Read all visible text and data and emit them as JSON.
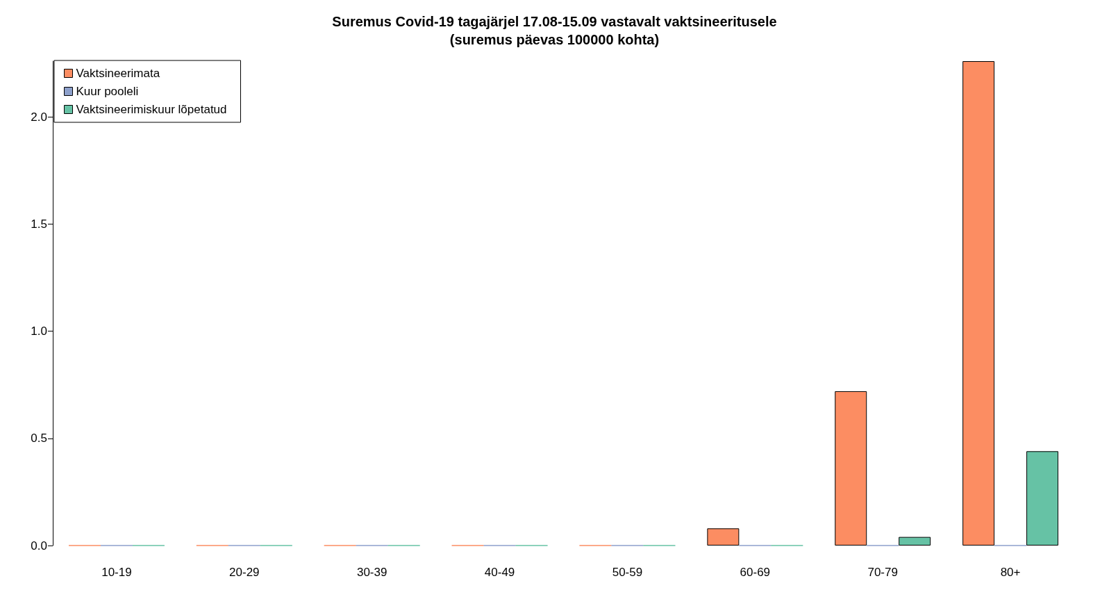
{
  "chart_data": {
    "type": "bar",
    "title": "Suremus Covid-19 tagajärjel 17.08-15.09 vastavalt vaktsineeritusele",
    "subtitle": "(suremus päevas 100000 kohta)",
    "categories": [
      "10-19",
      "20-29",
      "30-39",
      "40-49",
      "50-59",
      "60-69",
      "70-79",
      "80+"
    ],
    "series": [
      {
        "name": "Vaktsineerimata",
        "color": "#fc8d62",
        "values": [
          0,
          0,
          0,
          0,
          0,
          0.08,
          0.72,
          2.26
        ]
      },
      {
        "name": "Kuur pooleli",
        "color": "#8da0cb",
        "values": [
          0,
          0,
          0,
          0,
          0,
          0,
          0,
          0
        ]
      },
      {
        "name": "Vaktsineerimiskuur lõpetatud",
        "color": "#66c2a5",
        "values": [
          0,
          0,
          0,
          0,
          0,
          0,
          0.04,
          0.44
        ]
      }
    ],
    "ylim": [
      0,
      2.26
    ],
    "yticks": [
      {
        "value": 0,
        "label": "0.0"
      },
      {
        "value": 0.5,
        "label": "0.5"
      },
      {
        "value": 1,
        "label": "1.0"
      },
      {
        "value": 1.5,
        "label": "1.5"
      },
      {
        "value": 2,
        "label": "2.0"
      }
    ],
    "grid": false,
    "legend": "top left"
  }
}
